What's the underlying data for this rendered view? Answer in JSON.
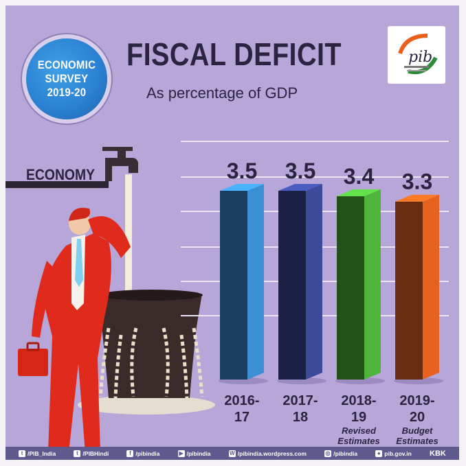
{
  "badge": {
    "text": "ECONOMIC\nSURVEY\n2019-20"
  },
  "header": {
    "title": "FISCAL DEFICIT",
    "subtitle": "As percentage of GDP"
  },
  "logo": {
    "text": "pib"
  },
  "illustration": {
    "label": "ECONOMY"
  },
  "chart_data": {
    "type": "bar",
    "title": "FISCAL DEFICIT",
    "subtitle": "As percentage of GDP",
    "categories": [
      {
        "lines": [
          "2016-",
          "17"
        ],
        "note": []
      },
      {
        "lines": [
          "2017-",
          "18"
        ],
        "note": []
      },
      {
        "lines": [
          "2018-",
          "19"
        ],
        "note": [
          "Revised",
          "Estimates"
        ]
      },
      {
        "lines": [
          "2019-",
          "20"
        ],
        "note": [
          "Budget",
          "Estimates"
        ]
      }
    ],
    "values": [
      3.5,
      3.5,
      3.4,
      3.3
    ],
    "value_labels": [
      "3.5",
      "3.5",
      "3.4",
      "3.3"
    ],
    "colors": [
      "#3b8fd4",
      "#3d4a9a",
      "#4fb53a",
      "#e8621f"
    ],
    "grid": true,
    "legend": "none"
  },
  "footer": {
    "items": [
      {
        "icon": "twitter-icon",
        "glyph": "t",
        "text": "/PIB_India"
      },
      {
        "icon": "twitter-icon",
        "glyph": "t",
        "text": "/PIBHindi"
      },
      {
        "icon": "facebook-icon",
        "glyph": "f",
        "text": "/pibindia"
      },
      {
        "icon": "youtube-icon",
        "glyph": "▶",
        "text": "/pibindia"
      },
      {
        "icon": "wordpress-icon",
        "glyph": "W",
        "text": "/pibindia.wordpress.com"
      },
      {
        "icon": "instagram-icon",
        "glyph": "◎",
        "text": "/pibindia"
      },
      {
        "icon": "globe-icon",
        "glyph": "●",
        "text": "pib.gov.in"
      }
    ],
    "credit": "KBK"
  }
}
